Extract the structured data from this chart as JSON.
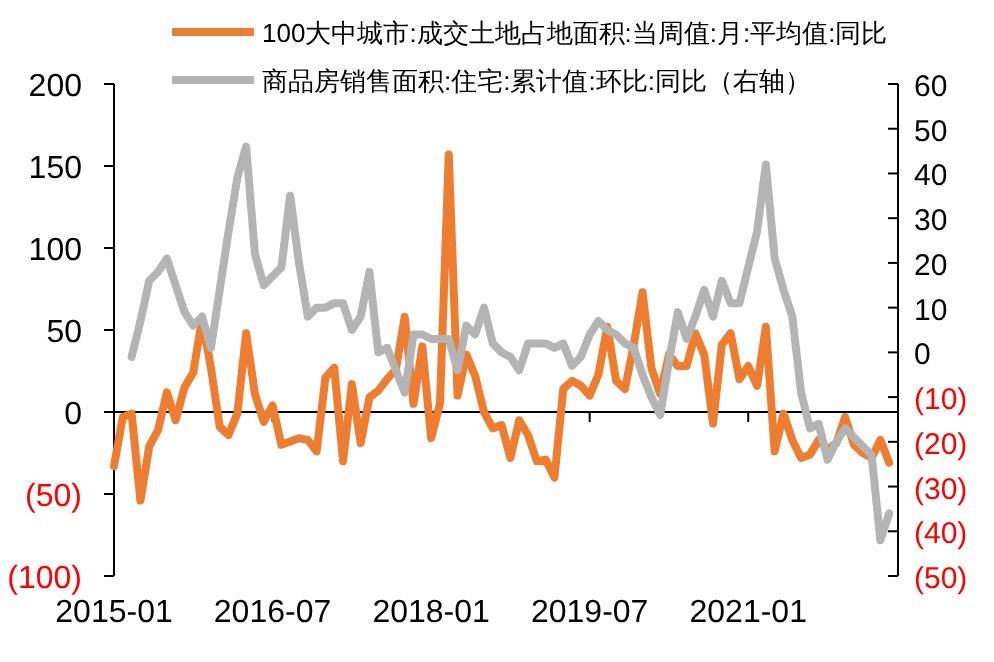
{
  "chart_data": {
    "type": "line",
    "legend": "top",
    "x": [
      "2015-01",
      "2015-02",
      "2015-03",
      "2015-04",
      "2015-05",
      "2015-06",
      "2015-07",
      "2015-08",
      "2015-09",
      "2015-10",
      "2015-11",
      "2015-12",
      "2016-01",
      "2016-02",
      "2016-03",
      "2016-04",
      "2016-05",
      "2016-06",
      "2016-07",
      "2016-08",
      "2016-09",
      "2016-10",
      "2016-11",
      "2016-12",
      "2017-01",
      "2017-02",
      "2017-03",
      "2017-04",
      "2017-05",
      "2017-06",
      "2017-07",
      "2017-08",
      "2017-09",
      "2017-10",
      "2017-11",
      "2017-12",
      "2018-01",
      "2018-02",
      "2018-03",
      "2018-04",
      "2018-05",
      "2018-06",
      "2018-07",
      "2018-08",
      "2018-09",
      "2018-10",
      "2018-11",
      "2018-12",
      "2019-01",
      "2019-02",
      "2019-03",
      "2019-04",
      "2019-05",
      "2019-06",
      "2019-07",
      "2019-08",
      "2019-09",
      "2019-10",
      "2019-11",
      "2019-12",
      "2020-01",
      "2020-02",
      "2020-03",
      "2020-04",
      "2020-05",
      "2020-06",
      "2020-07",
      "2020-08",
      "2020-09",
      "2020-10",
      "2020-11",
      "2020-12",
      "2021-01",
      "2021-02",
      "2021-03",
      "2021-04",
      "2021-05",
      "2021-06",
      "2021-07",
      "2021-08",
      "2021-09",
      "2021-10",
      "2021-11",
      "2021-12",
      "2022-01",
      "2022-02",
      "2022-03",
      "2022-04",
      "2022-05"
    ],
    "series": [
      {
        "name": "100大中城市:成交土地占地面积:当周值:月:平均值:同比",
        "color": "#ed7d31",
        "axis": "y",
        "values": [
          -33,
          -3,
          -1,
          -54,
          -21,
          -11,
          12,
          -5,
          15,
          24,
          57,
          27,
          -9,
          -14,
          -1,
          48,
          11,
          -6,
          4,
          -20,
          -18,
          -16,
          -17,
          -24,
          21,
          27,
          -30,
          17,
          -19,
          9,
          13,
          20,
          26,
          58,
          5,
          40,
          -16,
          5,
          157,
          10,
          35,
          22,
          0,
          -10,
          -8,
          -28,
          -5,
          -14,
          -30,
          -29,
          -40,
          14,
          19,
          16,
          10,
          23,
          52,
          19,
          14,
          41,
          73,
          27,
          11,
          35,
          28,
          28,
          48,
          35,
          -7,
          41,
          48,
          20,
          28,
          16,
          52,
          -24,
          -1,
          -17,
          -28,
          -26,
          -17,
          -23,
          -19,
          -3,
          -20,
          -25,
          -28,
          -17,
          -31
        ]
      },
      {
        "name": "商品房销售面积:住宅:累计值:环比:同比（右轴）",
        "color": "#b4b4b4",
        "axis": "y2",
        "x": [
          "2015-03",
          "2015-04",
          "2015-05",
          "2015-06",
          "2015-07",
          "2015-08",
          "2015-09",
          "2015-10",
          "2015-11",
          "2015-12",
          "2016-01",
          "2016-02",
          "2016-03",
          "2016-04",
          "2016-05",
          "2016-06",
          "2016-07",
          "2016-08",
          "2016-09",
          "2016-10",
          "2016-11",
          "2016-12",
          "2017-01",
          "2017-02",
          "2017-03",
          "2017-04",
          "2017-05",
          "2017-06",
          "2017-07",
          "2017-08",
          "2017-09",
          "2017-10",
          "2017-11",
          "2017-12",
          "2018-01",
          "2018-02",
          "2018-03",
          "2018-04",
          "2018-05",
          "2018-06",
          "2018-07",
          "2018-08",
          "2018-09",
          "2018-10",
          "2018-11",
          "2018-12",
          "2019-01",
          "2019-02",
          "2019-03",
          "2019-04",
          "2019-05",
          "2019-06",
          "2019-07",
          "2019-08",
          "2019-09",
          "2019-10",
          "2019-11",
          "2019-12",
          "2020-01",
          "2020-02",
          "2020-03",
          "2020-04",
          "2020-05",
          "2020-06",
          "2020-07",
          "2020-08",
          "2020-09",
          "2020-10",
          "2020-11",
          "2020-12",
          "2021-01",
          "2021-02",
          "2021-03",
          "2021-04",
          "2021-05",
          "2021-06",
          "2021-07",
          "2021-08",
          "2021-09",
          "2021-10",
          "2021-11",
          "2021-12",
          "2022-01",
          "2022-02",
          "2022-03",
          "2022-04",
          "2022-05"
        ],
        "values": [
          -1,
          7,
          16,
          18,
          21,
          15,
          9,
          6,
          8,
          1,
          14,
          27,
          39,
          46,
          22,
          15,
          17,
          19,
          35,
          20,
          8,
          10,
          10,
          11,
          11,
          5,
          8,
          18,
          0,
          1,
          -4,
          -9,
          4,
          4,
          3,
          3,
          3,
          -4,
          6,
          4,
          10,
          2,
          0,
          -1,
          -4,
          2,
          2,
          2,
          1,
          2,
          -3,
          -1,
          4,
          7,
          5,
          4,
          2,
          1,
          -5,
          -10,
          -14,
          -2,
          9,
          3,
          8,
          14,
          8,
          16,
          11,
          11,
          19,
          27,
          42,
          21,
          14,
          8,
          -9,
          -17,
          -16,
          -24,
          -20,
          -17,
          -19,
          -21,
          -23,
          -42,
          -36
        ]
      }
    ],
    "xlim": [
      "2015-01",
      "2022-06"
    ],
    "xticks": [
      "2015-01",
      "2016-07",
      "2018-01",
      "2019-07",
      "2021-01"
    ],
    "ylim": [
      -100,
      200
    ],
    "yticks": [
      {
        "value": -100,
        "label": "(100)"
      },
      {
        "value": -50,
        "label": "(50)"
      },
      0,
      50,
      100,
      150,
      200
    ],
    "y2lim": [
      -50,
      60
    ],
    "y2ticks": [
      {
        "value": -50,
        "label": "(50)"
      },
      {
        "value": -40,
        "label": "(40)"
      },
      {
        "value": -30,
        "label": "(30)"
      },
      {
        "value": -20,
        "label": "(20)"
      },
      {
        "value": -10,
        "label": "(10)"
      },
      0,
      10,
      20,
      30,
      40,
      50,
      60
    ]
  }
}
